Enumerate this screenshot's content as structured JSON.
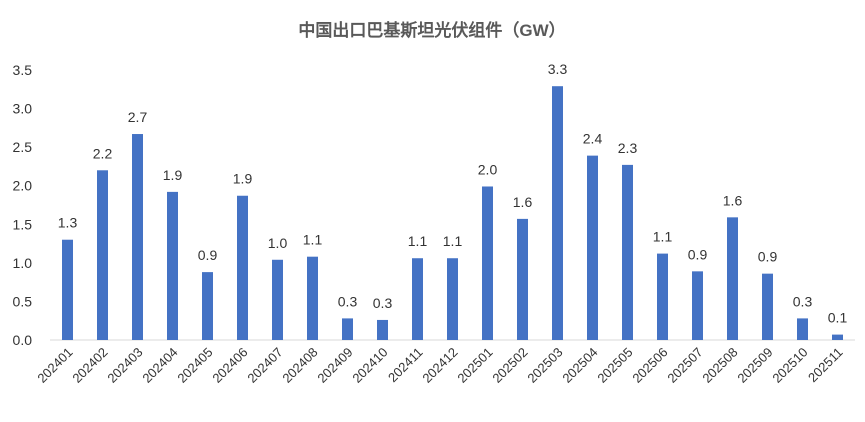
{
  "chart_data": {
    "type": "bar",
    "title": "中国出口巴基斯坦光伏组件（GW）",
    "xlabel": "",
    "ylabel": "",
    "ylim": [
      0,
      3.5
    ],
    "yticks": [
      "0.0",
      "0.5",
      "1.0",
      "1.5",
      "2.0",
      "2.5",
      "3.0",
      "3.5"
    ],
    "grid": false,
    "legend": "none",
    "bar_color": "#4472C4",
    "categories": [
      "202401",
      "202402",
      "202403",
      "202404",
      "202405",
      "202406",
      "202407",
      "202408",
      "202409",
      "202410",
      "202411",
      "202412",
      "202501",
      "202502",
      "202503",
      "202504",
      "202505",
      "202506",
      "202507",
      "202508",
      "202509",
      "202510",
      "202511"
    ],
    "values": [
      1.3,
      2.2,
      2.67,
      1.92,
      0.88,
      1.87,
      1.04,
      1.08,
      0.28,
      0.26,
      1.06,
      1.06,
      1.99,
      1.57,
      3.29,
      2.39,
      2.27,
      1.12,
      0.89,
      1.59,
      0.86,
      0.28,
      0.07
    ],
    "labels": [
      "1.3",
      "2.2",
      "2.7",
      "1.9",
      "0.9",
      "1.9",
      "1.0",
      "1.1",
      "0.3",
      "0.3",
      "1.1",
      "1.1",
      "2.0",
      "1.6",
      "3.3",
      "2.4",
      "2.3",
      "1.1",
      "0.9",
      "1.6",
      "0.9",
      "0.3",
      "0.1"
    ]
  }
}
